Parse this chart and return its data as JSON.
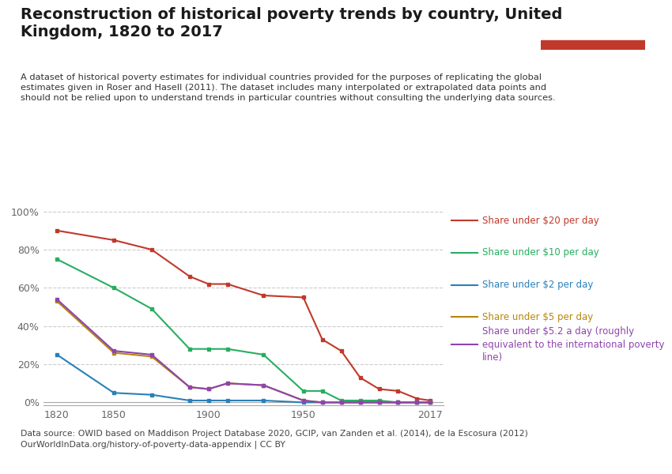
{
  "title": "Reconstruction of historical poverty trends by country, United\nKingdom, 1820 to 2017",
  "subtitle": "A dataset of historical poverty estimates for individual countries provided for the purposes of replicating the global\nestimates given in Roser and Hasell (2011). The dataset includes many interpolated or extrapolated data points and\nshould not be relied upon to understand trends in particular countries without consulting the underlying data sources.",
  "source": "Data source: OWID based on Maddison Project Database 2020, GCIP, van Zanden et al. (2014), de la Escosura (2012)\nOurWorldInData.org/history-of-poverty-data-appendix | CC BY",
  "series": {
    "under20": {
      "label": "Share under $20 per day",
      "color": "#C0392B",
      "years": [
        1820,
        1850,
        1870,
        1890,
        1900,
        1910,
        1929,
        1950,
        1960,
        1970,
        1980,
        1990,
        2000,
        2010,
        2017
      ],
      "values": [
        0.9,
        0.85,
        0.8,
        0.66,
        0.62,
        0.62,
        0.56,
        0.55,
        0.33,
        0.27,
        0.13,
        0.07,
        0.06,
        0.02,
        0.01
      ]
    },
    "under10": {
      "label": "Share under $10 per day",
      "color": "#27AE60",
      "years": [
        1820,
        1850,
        1870,
        1890,
        1900,
        1910,
        1929,
        1950,
        1960,
        1970,
        1980,
        1990,
        2000,
        2010,
        2017
      ],
      "values": [
        0.75,
        0.6,
        0.49,
        0.28,
        0.28,
        0.28,
        0.25,
        0.06,
        0.06,
        0.01,
        0.01,
        0.01,
        0.0,
        0.0,
        0.0
      ]
    },
    "under2": {
      "label": "Share under $2 per day",
      "color": "#2980B9",
      "years": [
        1820,
        1850,
        1870,
        1890,
        1900,
        1910,
        1929,
        1950,
        1960,
        1970,
        1980,
        1990,
        2000,
        2010,
        2017
      ],
      "values": [
        0.25,
        0.05,
        0.04,
        0.01,
        0.01,
        0.01,
        0.01,
        0.0,
        0.0,
        0.0,
        0.0,
        0.0,
        0.0,
        0.0,
        0.0
      ]
    },
    "under5": {
      "label": "Share under $5 per day",
      "color": "#B7860B",
      "years": [
        1820,
        1850,
        1870,
        1890,
        1900,
        1910,
        1929,
        1950,
        1960,
        1970,
        1980,
        1990,
        2000,
        2010,
        2017
      ],
      "values": [
        0.53,
        0.26,
        0.24,
        0.08,
        0.07,
        0.1,
        0.09,
        0.01,
        0.0,
        0.0,
        0.0,
        0.0,
        0.0,
        0.0,
        0.0
      ]
    },
    "under52": {
      "label": "Share under $5.2 a day (roughly\nequivalent to the international poverty\nline)",
      "color": "#8E44AD",
      "years": [
        1820,
        1850,
        1870,
        1890,
        1900,
        1910,
        1929,
        1950,
        1960,
        1970,
        1980,
        1990,
        2000,
        2010,
        2017
      ],
      "values": [
        0.54,
        0.27,
        0.25,
        0.08,
        0.07,
        0.1,
        0.09,
        0.01,
        0.0,
        0.0,
        0.0,
        0.0,
        0.0,
        0.0,
        0.0
      ]
    }
  },
  "yticks": [
    0.0,
    0.2,
    0.4,
    0.6,
    0.8,
    1.0
  ],
  "ytick_labels": [
    "0%",
    "20%",
    "40%",
    "60%",
    "80%",
    "100%"
  ],
  "xtick_display": [
    1820,
    1850,
    1900,
    1950,
    2017
  ],
  "background_color": "#FFFFFF",
  "grid_color": "#CCCCCC",
  "tick_color": "#666666",
  "title_fontsize": 14,
  "subtitle_fontsize": 8.2,
  "source_fontsize": 7.8,
  "legend_fontsize": 8.5,
  "axis_fontsize": 9
}
